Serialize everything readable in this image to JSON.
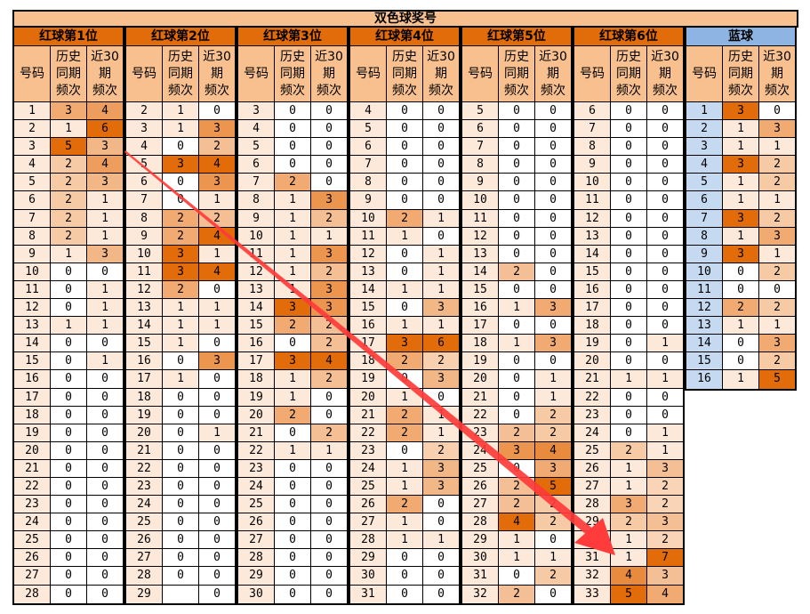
{
  "title": "双色球奖号",
  "sub_headers": [
    "号码",
    "历史\n同期\n频次",
    "近30\n期\n频次"
  ],
  "colors": {
    "header": "#f8c08f",
    "group_header": "#e26b0a",
    "blue_header": "#8db4e2",
    "num_bg": "#fde9d9",
    "blue_num_bg": "#c5d9f1",
    "arrow": "#ff3b3b"
  },
  "groups": [
    {
      "name": "红球第1位",
      "start": 1,
      "hist": [
        3,
        1,
        5,
        2,
        2,
        2,
        2,
        2,
        1,
        0,
        0,
        0,
        1,
        0,
        0,
        0,
        0,
        0,
        0,
        0,
        0,
        0,
        0,
        0,
        0,
        0,
        0,
        0
      ],
      "recent": [
        4,
        6,
        3,
        4,
        3,
        1,
        1,
        1,
        3,
        0,
        1,
        1,
        1,
        0,
        1,
        0,
        0,
        0,
        0,
        0,
        0,
        0,
        0,
        0,
        0,
        0,
        0,
        0
      ]
    },
    {
      "name": "红球第2位",
      "start": 2,
      "hist": [
        1,
        1,
        0,
        3,
        0,
        0,
        2,
        2,
        3,
        3,
        2,
        1,
        1,
        1,
        0,
        1,
        0,
        0,
        0,
        0,
        0,
        0,
        0,
        0,
        0,
        0,
        0,
        ""
      ],
      "recent": [
        0,
        3,
        2,
        4,
        3,
        1,
        2,
        4,
        1,
        4,
        0,
        1,
        1,
        0,
        3,
        0,
        0,
        0,
        1,
        0,
        0,
        0,
        0,
        0,
        0,
        0,
        0,
        0
      ]
    },
    {
      "name": "红球第3位",
      "start": 3,
      "hist": [
        0,
        0,
        0,
        0,
        2,
        1,
        1,
        1,
        1,
        1,
        1,
        3,
        2,
        0,
        3,
        1,
        1,
        2,
        0,
        1,
        0,
        0,
        0,
        0,
        0,
        0,
        0,
        0
      ],
      "recent": [
        0,
        0,
        0,
        0,
        0,
        3,
        2,
        1,
        3,
        2,
        3,
        3,
        2,
        2,
        4,
        2,
        0,
        0,
        2,
        1,
        0,
        0,
        0,
        0,
        0,
        0,
        0,
        0
      ]
    },
    {
      "name": "红球第4位",
      "start": 4,
      "hist": [
        0,
        0,
        0,
        0,
        0,
        0,
        2,
        1,
        0,
        0,
        1,
        0,
        1,
        3,
        2,
        0,
        1,
        2,
        2,
        0,
        1,
        1,
        2,
        1,
        1,
        0,
        0,
        0
      ],
      "recent": [
        0,
        0,
        0,
        0,
        0,
        0,
        1,
        0,
        1,
        1,
        1,
        3,
        1,
        6,
        2,
        3,
        0,
        1,
        1,
        2,
        3,
        3,
        0,
        0,
        1,
        0,
        0,
        0
      ]
    },
    {
      "name": "红球第5位",
      "start": 5,
      "hist": [
        0,
        0,
        0,
        0,
        0,
        0,
        0,
        0,
        0,
        2,
        0,
        1,
        0,
        1,
        0,
        0,
        0,
        0,
        2,
        3,
        0,
        2,
        2,
        4,
        1,
        1,
        0,
        2
      ],
      "recent": [
        0,
        0,
        0,
        0,
        0,
        0,
        0,
        0,
        0,
        0,
        0,
        3,
        0,
        3,
        0,
        1,
        1,
        2,
        2,
        4,
        3,
        5,
        2,
        2,
        0,
        1,
        2,
        0
      ]
    },
    {
      "name": "红球第6位",
      "start": 6,
      "hist": [
        0,
        0,
        0,
        0,
        0,
        0,
        0,
        0,
        0,
        0,
        0,
        0,
        0,
        0,
        0,
        1,
        0,
        0,
        0,
        2,
        1,
        1,
        3,
        2,
        1,
        1,
        4,
        5
      ],
      "recent": [
        0,
        0,
        0,
        0,
        0,
        0,
        0,
        0,
        0,
        0,
        0,
        0,
        0,
        1,
        0,
        1,
        0,
        0,
        1,
        1,
        3,
        2,
        2,
        3,
        2,
        7,
        3,
        4
      ]
    },
    {
      "name": "蓝球",
      "start": 1,
      "blue": true,
      "hist": [
        3,
        1,
        1,
        3,
        1,
        1,
        3,
        1,
        3,
        0,
        0,
        2,
        1,
        0,
        0,
        1
      ],
      "recent": [
        0,
        3,
        1,
        2,
        2,
        1,
        2,
        3,
        1,
        2,
        0,
        2,
        1,
        3,
        2,
        5
      ]
    }
  ]
}
